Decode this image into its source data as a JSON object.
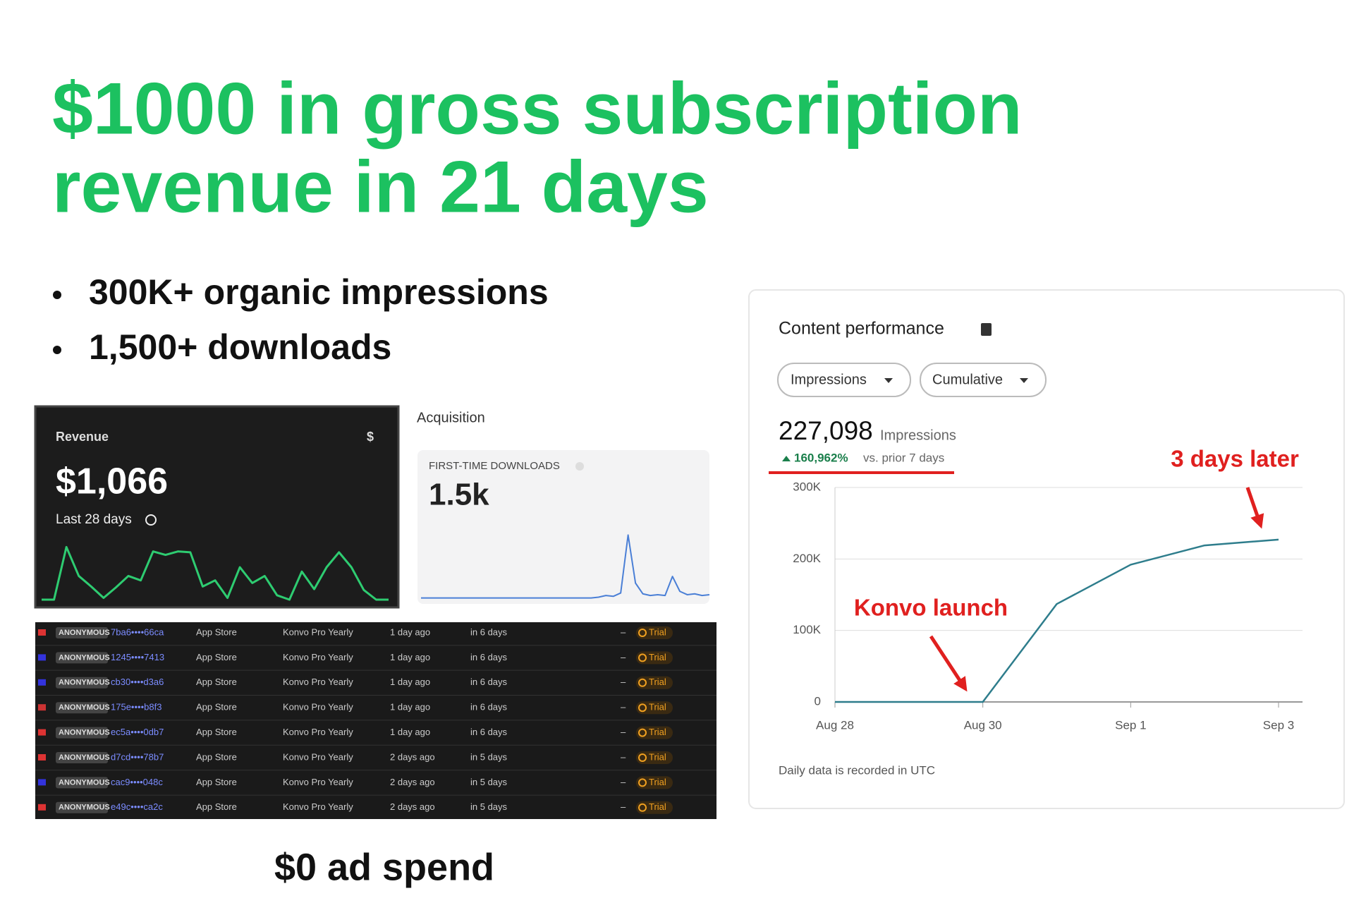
{
  "title_lines": [
    "$1000 in gross subscription",
    "revenue in 21 days"
  ],
  "bullets": [
    "300K+ organic impressions",
    "1,500+ downloads"
  ],
  "footer": "$0 ad spend",
  "revenue_card": {
    "label": "Revenue",
    "icon": "$",
    "amount": "$1,066",
    "period": "Last 28 days"
  },
  "acquisition_card": {
    "section": "Acquisition",
    "label": "FIRST-TIME DOWNLOADS",
    "amount": "1.5k"
  },
  "table": {
    "rows": [
      [
        "ANONYMOUS",
        "7ba6••••66ca",
        "App Store",
        "Konvo Pro Yearly",
        "1 day ago",
        "in 6 days",
        "–",
        "Trial"
      ],
      [
        "ANONYMOUS",
        "1245••••7413",
        "App Store",
        "Konvo Pro Yearly",
        "1 day ago",
        "in 6 days",
        "–",
        "Trial"
      ],
      [
        "ANONYMOUS",
        "cb30••••d3a6",
        "App Store",
        "Konvo Pro Yearly",
        "1 day ago",
        "in 6 days",
        "–",
        "Trial"
      ],
      [
        "ANONYMOUS",
        "175e••••b8f3",
        "App Store",
        "Konvo Pro Yearly",
        "1 day ago",
        "in 6 days",
        "–",
        "Trial"
      ],
      [
        "ANONYMOUS",
        "ec5a••••0db7",
        "App Store",
        "Konvo Pro Yearly",
        "1 day ago",
        "in 6 days",
        "–",
        "Trial"
      ],
      [
        "ANONYMOUS",
        "d7cd••••78b7",
        "App Store",
        "Konvo Pro Yearly",
        "2 days ago",
        "in 5 days",
        "–",
        "Trial"
      ],
      [
        "ANONYMOUS",
        "cac9••••048c",
        "App Store",
        "Konvo Pro Yearly",
        "2 days ago",
        "in 5 days",
        "–",
        "Trial"
      ],
      [
        "ANONYMOUS",
        "e49c••••ca2c",
        "App Store",
        "Konvo Pro Yearly",
        "2 days ago",
        "in 5 days",
        "–",
        "Trial"
      ]
    ]
  },
  "content_card": {
    "title": "Content performance",
    "dropdowns": [
      "Impressions",
      "Cumulative"
    ],
    "total": "227,098",
    "total_unit": "Impressions",
    "change": "160,962%",
    "change_note": "vs. prior 7 days",
    "footnote": "Daily data is recorded in UTC"
  },
  "chart_data": [
    {
      "type": "line",
      "color": "#2ecc71",
      "ylim": [
        0,
        70
      ],
      "values": [
        0,
        0,
        60,
        27,
        15,
        2,
        14,
        27,
        22,
        55,
        51,
        55,
        54,
        15,
        22,
        2,
        37,
        19,
        27,
        5,
        0,
        32,
        12,
        37,
        54,
        37,
        11,
        0,
        0
      ]
    },
    {
      "type": "line",
      "color": "#4a7fd6",
      "ylim": [
        0,
        80
      ],
      "values": [
        2,
        2,
        2,
        2,
        2,
        2,
        2,
        2,
        2,
        2,
        2,
        2,
        2,
        2,
        2,
        2,
        2,
        2,
        2,
        2,
        2,
        2,
        2,
        2,
        3,
        5,
        4,
        8,
        78,
        20,
        7,
        5,
        6,
        5,
        28,
        10,
        6,
        7,
        5,
        6
      ]
    },
    {
      "type": "line",
      "color": "#2e7d8c",
      "categories": [
        "Aug 28",
        null,
        "Aug 30",
        null,
        "Sep 1",
        null,
        "Sep 3"
      ],
      "values": [
        0,
        0,
        0,
        137000,
        192000,
        219000,
        227098
      ],
      "ylim": [
        0,
        300000
      ],
      "yticks": [
        0,
        {
          "value": 100000,
          "label": "100K"
        },
        {
          "value": 200000,
          "label": "200K"
        },
        {
          "value": 300000,
          "label": "300K"
        }
      ],
      "grid": true,
      "annotations": [
        "Konvo launch",
        "3 days later"
      ]
    }
  ]
}
